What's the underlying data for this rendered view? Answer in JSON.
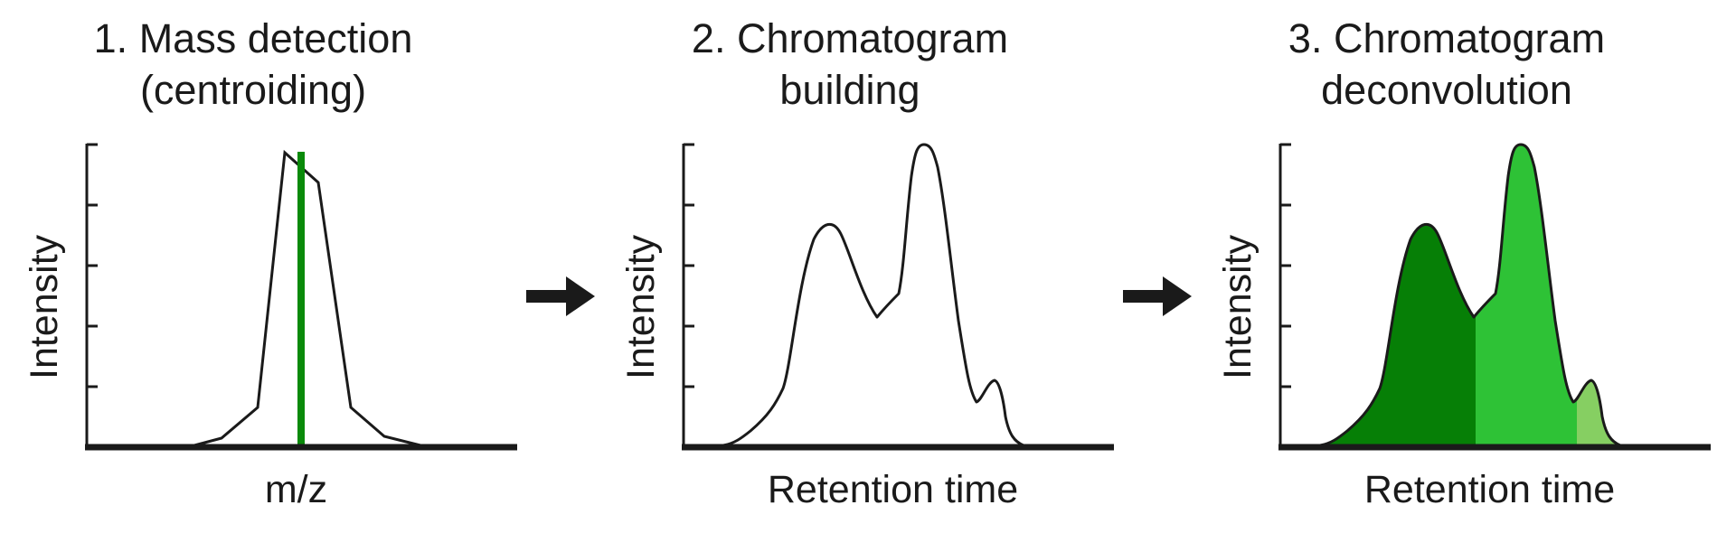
{
  "panels": [
    {
      "title_line1": "1. Mass detection",
      "title_line2": "(centroiding)",
      "ylabel": "Intensity",
      "xlabel": "m/z"
    },
    {
      "title_line1": "2. Chromatogram",
      "title_line2": "building",
      "ylabel": "Intensity",
      "xlabel": "Retention time"
    },
    {
      "title_line1": "3. Chromatogram",
      "title_line2": "deconvolution",
      "ylabel": "Intensity",
      "xlabel": "Retention time"
    }
  ],
  "colors": {
    "line": "#1a1a1a",
    "centroid": "#0a8a0a",
    "peak_dark": "#067f06",
    "peak_mid": "#2ec236",
    "peak_light": "#86cf62"
  },
  "icons": [
    "right-arrow-icon",
    "right-arrow-icon"
  ]
}
